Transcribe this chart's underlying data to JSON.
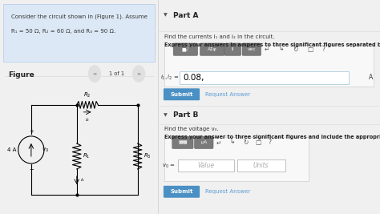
{
  "bg_color": "#f0f0f0",
  "left_panel_bg": "#f0f0f0",
  "right_panel_bg": "#ffffff",
  "problem_box_bg": "#dce8f5",
  "problem_box_edge": "#b8d0e8",
  "problem_text_line1": "Consider the circuit shown in (Figure 1). Assume",
  "problem_text_line2": "R₁ = 50 Ω, R₂ = 60 Ω, and R₃ = 90 Ω.",
  "figure_label": "Figure",
  "nav_text": "1 of 1",
  "part_a_label": "Part A",
  "part_a_header_bg": "#f5f5f5",
  "part_a_question": "Find the currents i₁ and i₂ in the circuit.",
  "part_a_instruction": "Express your answers in amperes to three significant figures separated by a comma.",
  "answer_a": "0.08,",
  "unit_a": "A",
  "part_b_label": "Part B",
  "part_b_question": "Find the voltage v₀.",
  "part_b_instruction": "Express your answer to three significant figures and include the appropriate units.",
  "submit_bg": "#4a90c4",
  "submit_text": "#ffffff",
  "toolbar_btn_bg": "#7a7a7a",
  "toolbar_bg": "#f0f0f0",
  "input_bg": "#ffffff",
  "input_border": "#aaaaaa",
  "box_border": "#cccccc",
  "text_color": "#333333",
  "link_color": "#5b9bd5",
  "bold_text": "#222222",
  "gray_light": "#e8e8e8",
  "divider_color": "#dddddd"
}
